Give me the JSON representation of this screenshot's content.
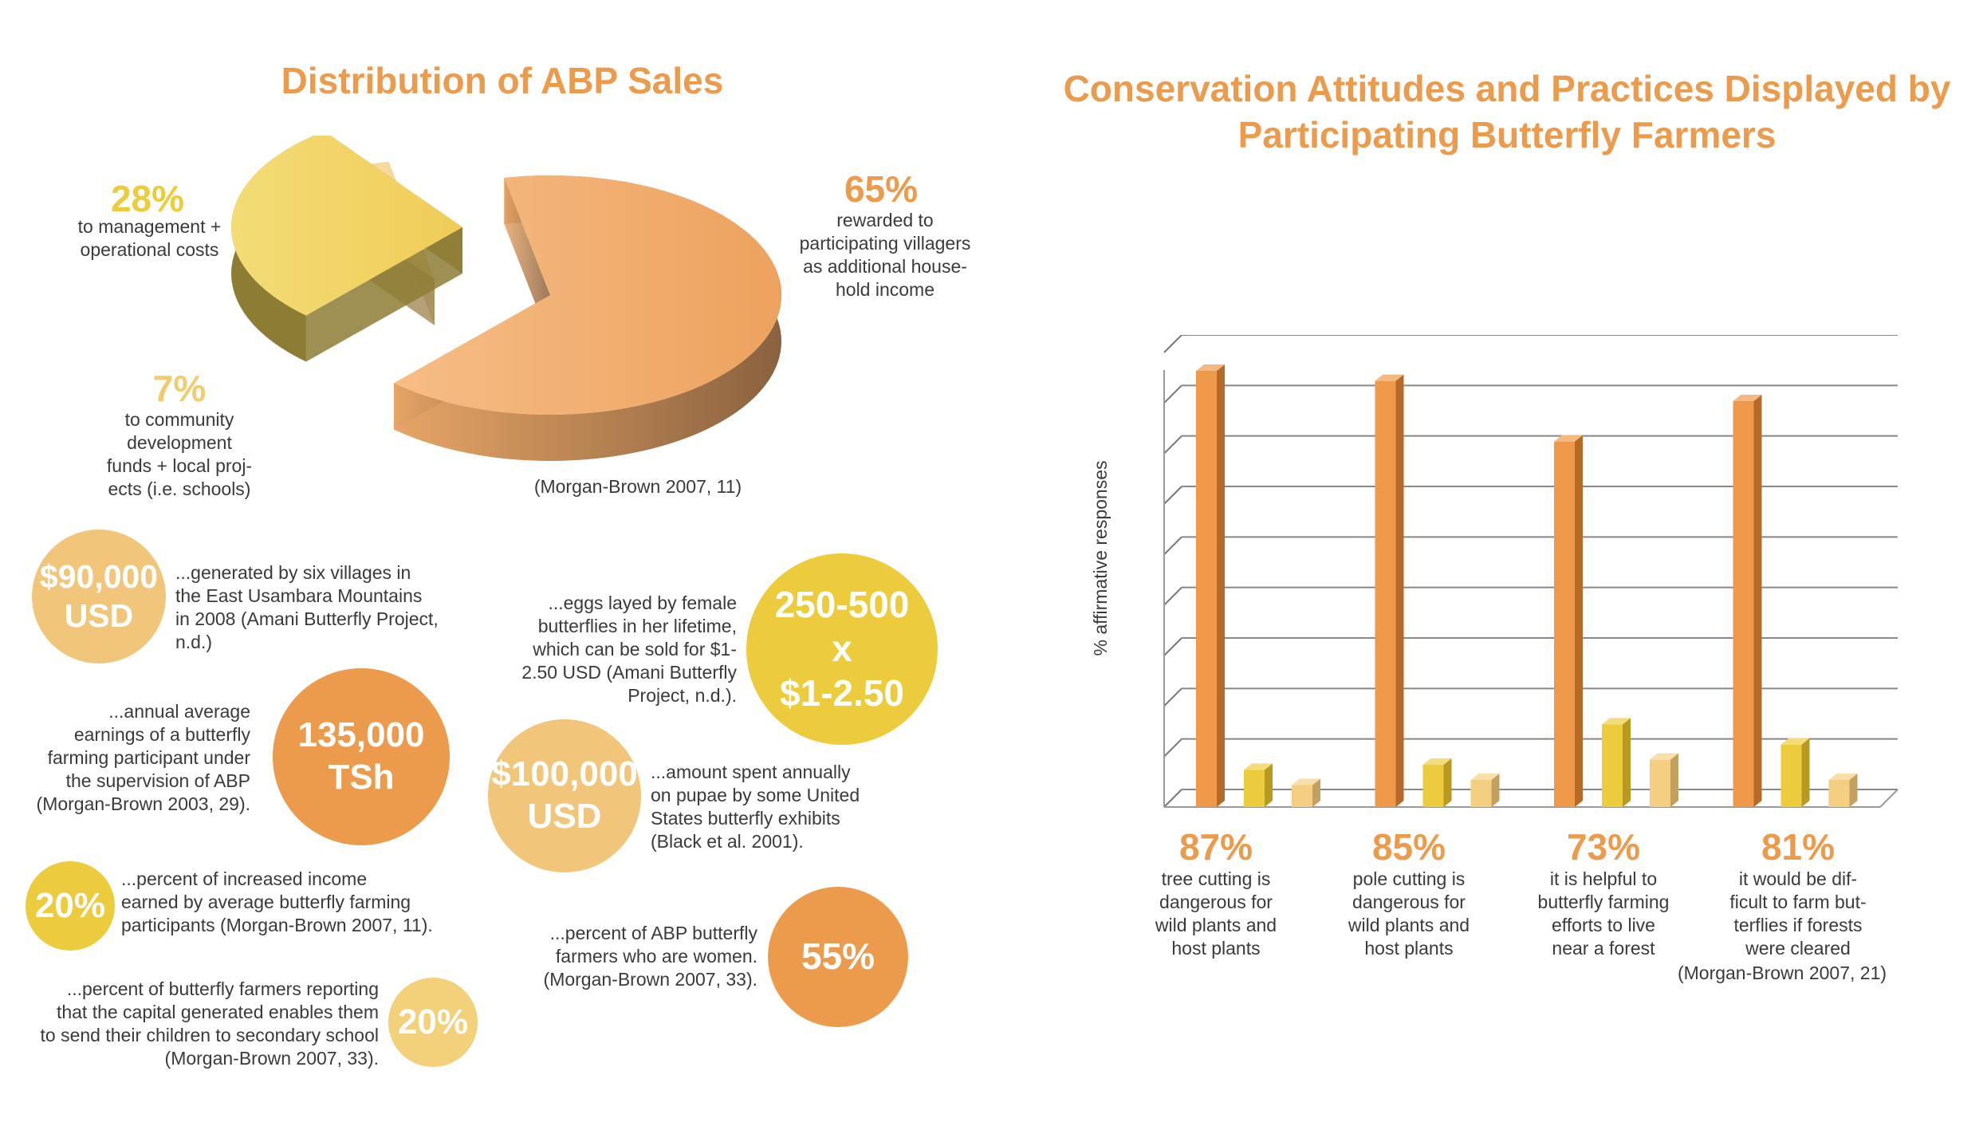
{
  "pie_section": {
    "title": "Distribution of ABP Sales",
    "slices": [
      {
        "percent": "65%",
        "text": "rewarded to\nparticipating villagers\nas additional house-\nhold income"
      },
      {
        "percent": "28%",
        "text": "to management +\noperational costs"
      },
      {
        "percent": "7%",
        "text": "to community\ndevelopment\nfunds + local proj-\nects (i.e. schools)"
      }
    ],
    "citation": "(Morgan-Brown 2007, 11)"
  },
  "facts": [
    {
      "value": "$90,000\nUSD",
      "text": "...generated by six villages in\nthe East Usambara Mountains\nin 2008 (Amani Butterfly Project,\nn.d.)"
    },
    {
      "value": "135,000\nTSh",
      "text": "...annual average\nearnings of a butterfly\nfarming participant  under\nthe supervision of ABP\n(Morgan-Brown 2003, 29)."
    },
    {
      "value": "20%",
      "text": "...percent of increased income\nearned by average butterfly farming\nparticipants (Morgan-Brown 2007, 11)."
    },
    {
      "value": "20%",
      "text": "...percent of butterfly farmers reporting\nthat the capital generated enables them\nto send their children to secondary school\n(Morgan-Brown 2007, 33)."
    },
    {
      "value": "250-500\nx\n$1-2.50",
      "text": "...eggs layed by female\nbutterflies in her lifetime,\nwhich can be sold for $1-\n2.50 USD (Amani Butterfly\nProject, n.d.)."
    },
    {
      "value": "$100,000\nUSD",
      "text": "...amount spent annually\non pupae by some United\nStates butterfly exhibits\n(Black et al. 2001)."
    },
    {
      "value": "55%",
      "text": "...percent of ABP butterfly\nfarmers who are women.\n(Morgan-Brown 2007, 33)."
    }
  ],
  "bar_section": {
    "title": "Conservation Attitudes and Practices Displayed by\nParticipating Butterfly Farmers",
    "citation": "(Morgan-Brown 2007, 21)"
  },
  "colors": {
    "orange": "#ec9a4c",
    "yellow": "#eccb3c",
    "light_yellow": "#f4d38a",
    "peach": "#efb06e"
  },
  "chart_data": [
    {
      "type": "pie",
      "title": "Distribution of ABP Sales",
      "categories": [
        "rewarded to participating villagers as additional household income",
        "to management + operational costs",
        "to community development funds + local projects (i.e. schools)"
      ],
      "values": [
        65,
        28,
        7
      ]
    },
    {
      "type": "bar",
      "title": "Conservation Attitudes and Practices Displayed by Participating Butterfly Farmers",
      "ylabel": "% affirmative responses",
      "ylim": [
        0,
        90
      ],
      "grid": true,
      "categories": [
        {
          "percent": "87%",
          "label": "tree cutting is\ndangerous for\nwild plants and\nhost plants"
        },
        {
          "percent": "85%",
          "label": "pole cutting is\ndangerous for\nwild plants and\nhost plants"
        },
        {
          "percent": "73%",
          "label": "it is helpful to\nbutterfly farming\nefforts to live\nnear a forest"
        },
        {
          "percent": "81%",
          "label": "it would be dif-\nficult to farm but-\nterflies if forests\nwere cleared"
        }
      ],
      "series": [
        {
          "values": [
            87,
            85,
            73,
            81
          ]
        },
        {
          "values": [
            8,
            9,
            17,
            13
          ]
        },
        {
          "values": [
            5,
            6,
            10,
            6
          ]
        }
      ]
    }
  ]
}
